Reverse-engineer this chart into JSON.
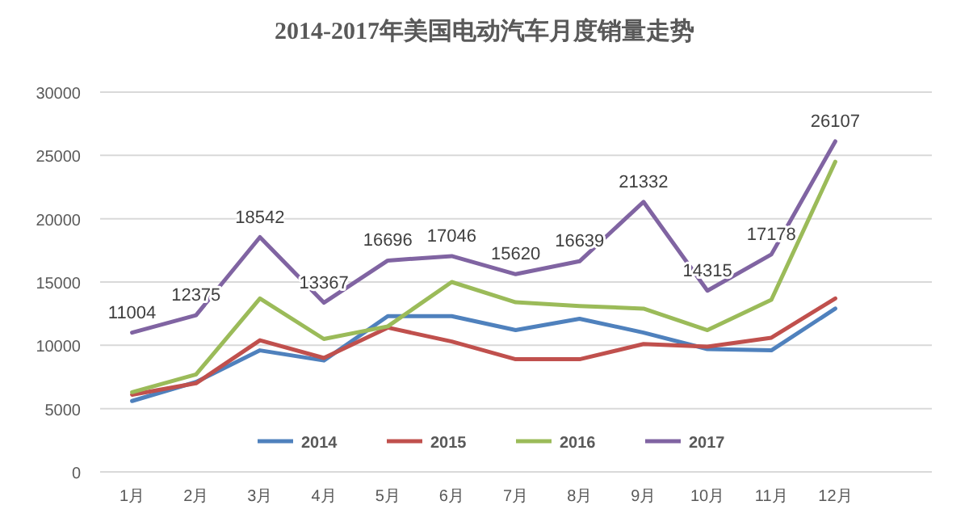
{
  "chart_data": {
    "type": "line",
    "title": "2014-2017年美国电动汽车月度销量走势",
    "categories": [
      "1月",
      "2月",
      "3月",
      "4月",
      "5月",
      "6月",
      "7月",
      "8月",
      "9月",
      "10月",
      "11月",
      "12月"
    ],
    "series": [
      {
        "name": "2014",
        "color": "#4f81bd",
        "values": [
          5600,
          7100,
          9600,
          8800,
          12300,
          12300,
          11200,
          12100,
          11000,
          9700,
          9600,
          12900
        ]
      },
      {
        "name": "2015",
        "color": "#c0504d",
        "values": [
          6100,
          7000,
          10400,
          9000,
          11400,
          10300,
          8900,
          8900,
          10100,
          9900,
          10600,
          13700
        ]
      },
      {
        "name": "2016",
        "color": "#9bbb59",
        "values": [
          6300,
          7700,
          13700,
          10500,
          11500,
          15000,
          13400,
          13100,
          12900,
          11200,
          13600,
          24500
        ]
      },
      {
        "name": "2017",
        "color": "#8064a2",
        "values": [
          11004,
          12375,
          18542,
          13367,
          16696,
          17046,
          15620,
          16639,
          21332,
          14315,
          17178,
          26107
        ],
        "value_labels": [
          "11004",
          "12375",
          "18542",
          "13367",
          "16696",
          "17046",
          "15620",
          "16639",
          "21332",
          "14315",
          "17178",
          "26107"
        ]
      }
    ],
    "ylim": [
      0,
      30000
    ],
    "yticks": [
      0,
      5000,
      10000,
      15000,
      20000,
      25000,
      30000
    ],
    "grid": "y",
    "legend": "bottom",
    "marker": "none",
    "line_style": "solid"
  }
}
